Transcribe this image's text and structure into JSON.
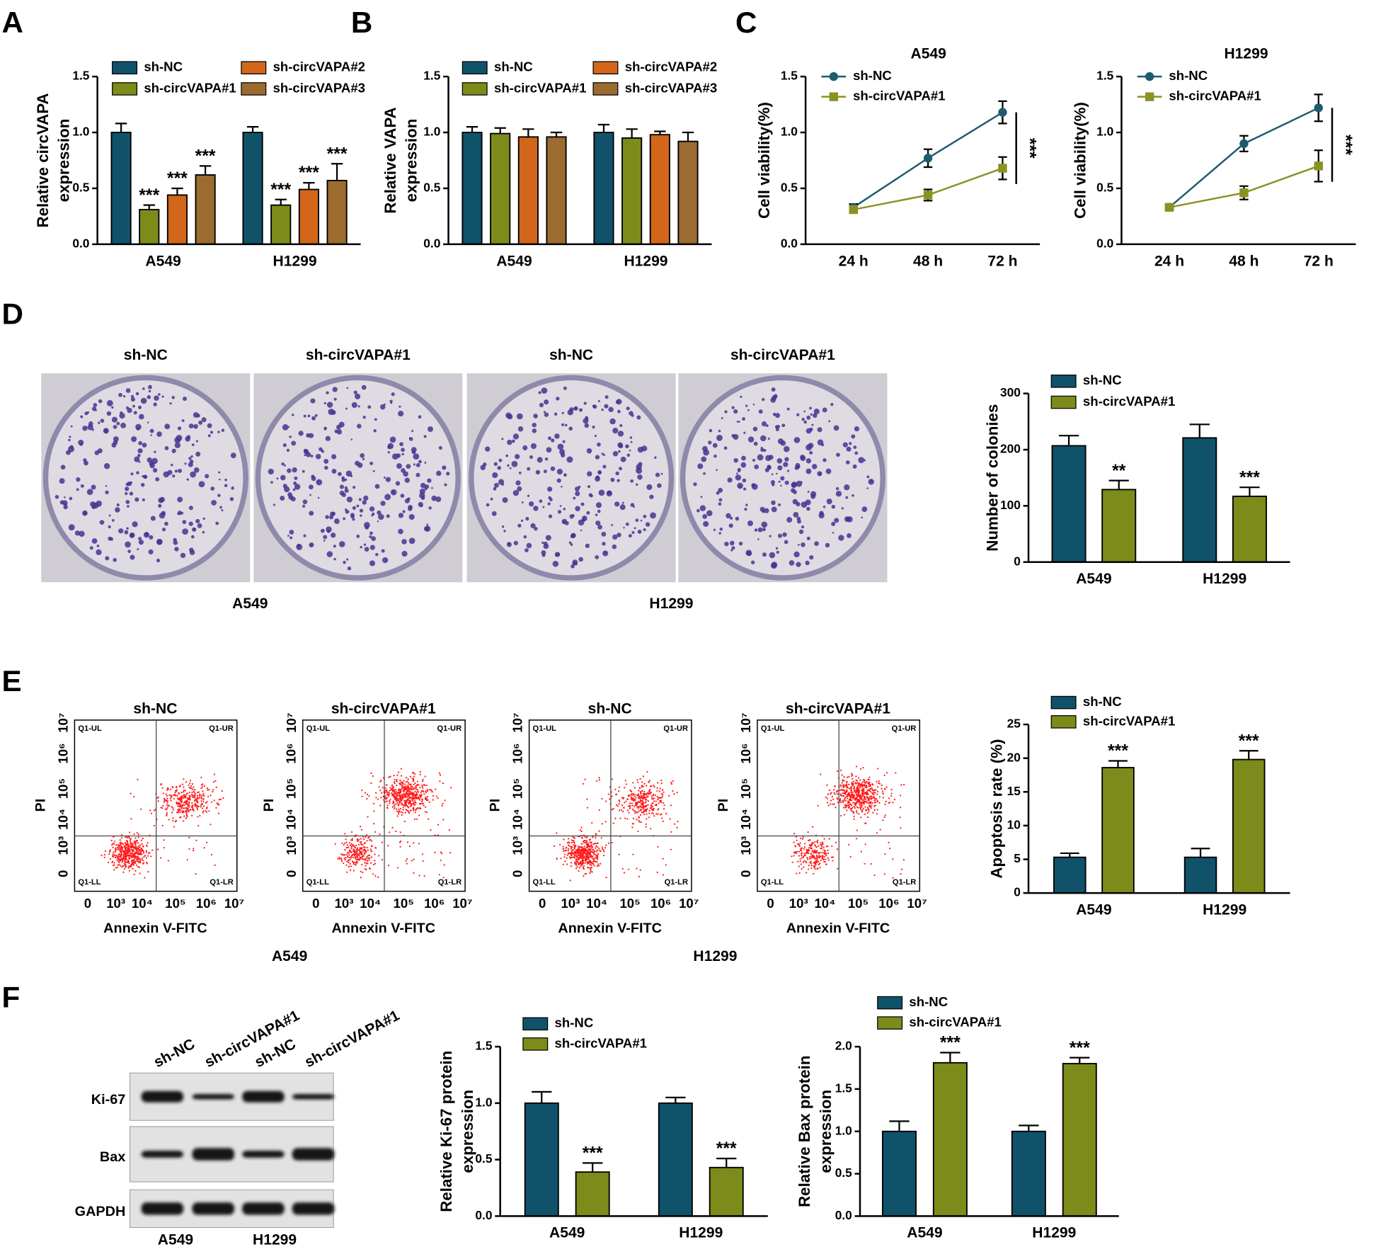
{
  "chart_data": [
    {
      "type": "bar",
      "ylabel": [
        "Relative circVAPA",
        "expression"
      ],
      "categories": [
        "A549",
        "H1299"
      ],
      "ylim": [
        0,
        1.5
      ],
      "yticks": [
        {
          "value": 0,
          "label": "0.0"
        },
        0.5,
        {
          "value": 1,
          "label": "1.0"
        },
        1.5
      ],
      "series": [
        {
          "name": "sh-NC",
          "color": "#11526b",
          "values": [
            1.0,
            1.0
          ],
          "errors": [
            0.08,
            0.05
          ],
          "sig": [
            null,
            null
          ]
        },
        {
          "name": "sh-circVAPA#1",
          "color": "#7d8b1a",
          "values": [
            0.31,
            0.35
          ],
          "errors": [
            0.04,
            0.05
          ],
          "sig": [
            "***",
            "***"
          ]
        },
        {
          "name": "sh-circVAPA#2",
          "color": "#d2661a",
          "values": [
            0.44,
            0.49
          ],
          "errors": [
            0.06,
            0.06
          ],
          "sig": [
            "***",
            "***"
          ]
        },
        {
          "name": "sh-circVAPA#3",
          "color": "#9c6b30",
          "values": [
            0.62,
            0.57
          ],
          "errors": [
            0.08,
            0.15
          ],
          "sig": [
            "***",
            "***"
          ]
        }
      ]
    },
    {
      "type": "bar",
      "ylabel": [
        "Relative VAPA",
        "expression"
      ],
      "categories": [
        "A549",
        "H1299"
      ],
      "ylim": [
        0,
        1.5
      ],
      "yticks": [
        {
          "value": 0,
          "label": "0.0"
        },
        0.5,
        {
          "value": 1,
          "label": "1.0"
        },
        1.5
      ],
      "series": [
        {
          "name": "sh-NC",
          "color": "#11526b",
          "values": [
            1.0,
            1.0
          ],
          "errors": [
            0.05,
            0.07
          ]
        },
        {
          "name": "sh-circVAPA#1",
          "color": "#7d8b1a",
          "values": [
            0.99,
            0.95
          ],
          "errors": [
            0.05,
            0.08
          ]
        },
        {
          "name": "sh-circVAPA#2",
          "color": "#d2661a",
          "values": [
            0.96,
            0.98
          ],
          "errors": [
            0.07,
            0.03
          ]
        },
        {
          "name": "sh-circVAPA#3",
          "color": "#9c6b30",
          "values": [
            0.96,
            0.92
          ],
          "errors": [
            0.04,
            0.08
          ]
        }
      ]
    },
    {
      "type": "line",
      "title": "A549",
      "ylabel": [
        "Cell viability(%)"
      ],
      "categories": [
        "24 h",
        "48 h",
        "72 h"
      ],
      "ylim": [
        0,
        1.5
      ],
      "yticks": [
        {
          "value": 0,
          "label": "0.0"
        },
        0.5,
        {
          "value": 1,
          "label": "1.0"
        },
        1.5
      ],
      "bracket": "***",
      "series": [
        {
          "name": "sh-NC",
          "color": "#1d5c6e",
          "marker": "circle",
          "values": [
            0.33,
            0.77,
            1.18
          ],
          "errors": [
            0.03,
            0.08,
            0.1
          ]
        },
        {
          "name": "sh-circVAPA#1",
          "color": "#8a9222",
          "marker": "square",
          "values": [
            0.31,
            0.44,
            0.68
          ],
          "errors": [
            0.03,
            0.05,
            0.1
          ]
        }
      ]
    },
    {
      "type": "line",
      "title": "H1299",
      "ylabel": [
        "Cell viability(%)"
      ],
      "categories": [
        "24 h",
        "48 h",
        "72 h"
      ],
      "ylim": [
        0,
        1.5
      ],
      "yticks": [
        {
          "value": 0,
          "label": "0.0"
        },
        0.5,
        {
          "value": 1,
          "label": "1.0"
        },
        1.5
      ],
      "bracket": "***",
      "series": [
        {
          "name": "sh-NC",
          "color": "#1d5c6e",
          "marker": "circle",
          "values": [
            0.33,
            0.9,
            1.22
          ],
          "errors": [
            0.02,
            0.07,
            0.12
          ]
        },
        {
          "name": "sh-circVAPA#1",
          "color": "#8a9222",
          "marker": "square",
          "values": [
            0.33,
            0.46,
            0.7
          ],
          "errors": [
            0.02,
            0.06,
            0.14
          ]
        }
      ]
    },
    {
      "type": "bar",
      "ylabel": [
        "Number of colonies"
      ],
      "categories": [
        "A549",
        "H1299"
      ],
      "ylim": [
        0,
        300
      ],
      "yticks": [
        0,
        100,
        200,
        300
      ],
      "series": [
        {
          "name": "sh-NC",
          "color": "#11526b",
          "values": [
            207,
            221
          ],
          "errors": [
            18,
            24
          ],
          "sig": [
            null,
            null
          ]
        },
        {
          "name": "sh-circVAPA#1",
          "color": "#7d8b1a",
          "values": [
            129,
            117
          ],
          "errors": [
            16,
            16
          ],
          "sig": [
            "**",
            "***"
          ]
        }
      ]
    },
    {
      "type": "bar",
      "ylabel": [
        "Apoptosis rate (%)"
      ],
      "categories": [
        "A549",
        "H1299"
      ],
      "ylim": [
        0,
        25
      ],
      "yticks": [
        0,
        5,
        10,
        15,
        20,
        25
      ],
      "series": [
        {
          "name": "sh-NC",
          "color": "#11526b",
          "values": [
            5.3,
            5.3
          ],
          "errors": [
            0.6,
            1.3
          ],
          "sig": [
            null,
            null
          ]
        },
        {
          "name": "sh-circVAPA#1",
          "color": "#7d8b1a",
          "values": [
            18.6,
            19.8
          ],
          "errors": [
            1.0,
            1.3
          ],
          "sig": [
            "***",
            "***"
          ]
        }
      ]
    },
    {
      "type": "bar",
      "ylabel": [
        "Relative Ki-67 protein",
        "expression"
      ],
      "categories": [
        "A549",
        "H1299"
      ],
      "ylim": [
        0,
        1.5
      ],
      "yticks": [
        {
          "value": 0,
          "label": "0.0"
        },
        0.5,
        {
          "value": 1,
          "label": "1.0"
        },
        1.5
      ],
      "series": [
        {
          "name": "sh-NC",
          "color": "#11526b",
          "values": [
            1.0,
            1.0
          ],
          "errors": [
            0.1,
            0.05
          ],
          "sig": [
            null,
            null
          ]
        },
        {
          "name": "sh-circVAPA#1",
          "color": "#7d8b1a",
          "values": [
            0.39,
            0.43
          ],
          "errors": [
            0.08,
            0.08
          ],
          "sig": [
            "***",
            "***"
          ]
        }
      ]
    },
    {
      "type": "bar",
      "ylabel": [
        "Relative Bax protein",
        "expression"
      ],
      "categories": [
        "A549",
        "H1299"
      ],
      "ylim": [
        0,
        2
      ],
      "yticks": [
        {
          "value": 0,
          "label": "0.0"
        },
        0.5,
        {
          "value": 1,
          "label": "1.0"
        },
        1.5,
        {
          "value": 2,
          "label": "2.0"
        }
      ],
      "series": [
        {
          "name": "sh-NC",
          "color": "#11526b",
          "values": [
            1.0,
            1.0
          ],
          "errors": [
            0.12,
            0.07
          ],
          "sig": [
            null,
            null
          ]
        },
        {
          "name": "sh-circVAPA#1",
          "color": "#7d8b1a",
          "values": [
            1.81,
            1.8
          ],
          "errors": [
            0.12,
            0.07
          ],
          "sig": [
            "***",
            "***"
          ]
        }
      ]
    }
  ],
  "figure": {
    "panel_labels": [
      "A",
      "B",
      "C",
      "D",
      "E",
      "F"
    ],
    "colony": {
      "titles": [
        "sh-NC",
        "sh-circVAPA#1",
        "sh-NC",
        "sh-circVAPA#1"
      ],
      "groups": [
        "A549",
        "H1299"
      ]
    },
    "flow": {
      "titles": [
        "sh-NC",
        "sh-circVAPA#1",
        "sh-NC",
        "sh-circVAPA#1"
      ],
      "ylabel": "PI",
      "xlabel": "Annexin V-FITC",
      "ticks": [
        "0",
        "10³",
        "10⁴",
        "10⁵",
        "10⁶",
        "10⁷"
      ],
      "quadrants": [
        "Q1-UL",
        "Q1-UR",
        "Q1-LL",
        "Q1-LR"
      ],
      "groups": [
        "A549",
        "H1299"
      ]
    },
    "blot": {
      "lanes": [
        "sh-NC",
        "sh-circVAPA#1",
        "sh-NC",
        "sh-circVAPA#1"
      ],
      "rows": [
        "Ki-67",
        "Bax",
        "GAPDH"
      ],
      "groups": [
        "A549",
        "H1299"
      ]
    }
  }
}
